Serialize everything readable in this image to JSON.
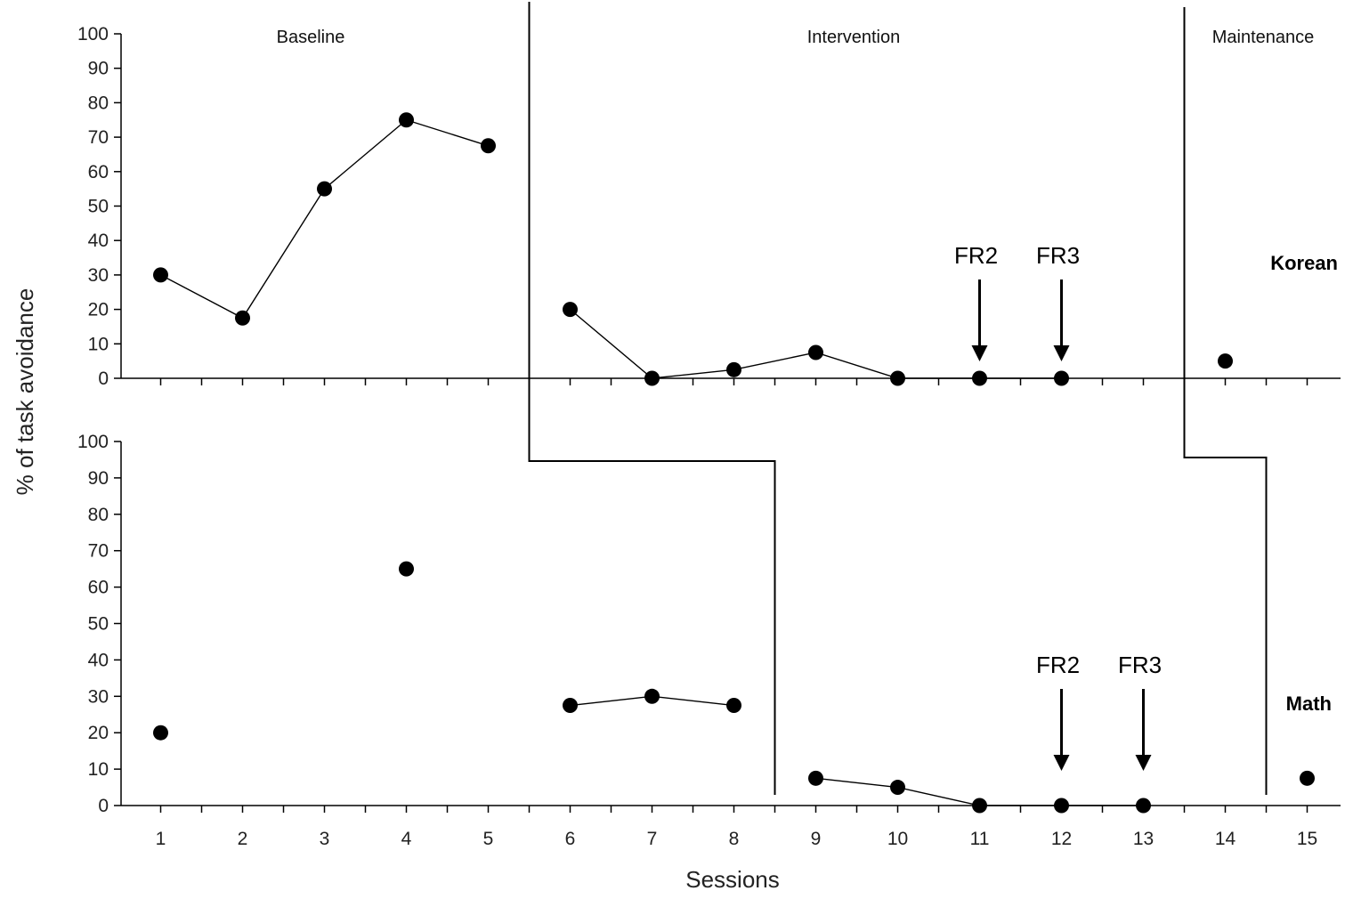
{
  "chart_data": {
    "type": "line",
    "ylabel": "% of task avoidance",
    "xlabel": "Sessions",
    "x_ticks": [
      "1",
      "2",
      "3",
      "4",
      "5",
      "6",
      "7",
      "8",
      "9",
      "10",
      "11",
      "12",
      "13",
      "14",
      "15"
    ],
    "xlim": [
      0.5,
      15.5
    ],
    "ylim": [
      0,
      100
    ],
    "y_ticks": [
      "0",
      "10",
      "20",
      "30",
      "40",
      "50",
      "60",
      "70",
      "80",
      "90",
      "100"
    ],
    "phases": [
      "Baseline",
      "Intervention",
      "Maintenance"
    ],
    "panels": [
      {
        "name": "Korean",
        "series": [
          {
            "points": [
              [
                1,
                30
              ],
              [
                2,
                17.5
              ],
              [
                3,
                55
              ],
              [
                4,
                75
              ],
              [
                5,
                67.5
              ]
            ]
          },
          {
            "points": [
              [
                6,
                20
              ],
              [
                7,
                0
              ],
              [
                8,
                2.5
              ],
              [
                9,
                7.5
              ],
              [
                10,
                0
              ],
              [
                11,
                0
              ],
              [
                12,
                0
              ]
            ]
          },
          {
            "points": [
              [
                14,
                5
              ]
            ]
          }
        ],
        "phase_change_after": [
          5,
          13
        ],
        "annotations": [
          {
            "text": "FR2",
            "x": 11
          },
          {
            "text": "FR3",
            "x": 12
          }
        ]
      },
      {
        "name": "Math",
        "series": [
          {
            "points": [
              [
                1,
                20
              ]
            ]
          },
          {
            "points": [
              [
                4,
                65
              ]
            ]
          },
          {
            "points": [
              [
                6,
                27.5
              ],
              [
                7,
                30
              ],
              [
                8,
                27.5
              ]
            ]
          },
          {
            "points": [
              [
                9,
                7.5
              ],
              [
                10,
                5
              ],
              [
                11,
                0
              ],
              [
                12,
                0
              ],
              [
                13,
                0
              ]
            ]
          },
          {
            "points": [
              [
                15,
                7.5
              ]
            ]
          }
        ],
        "phase_change_after": [
          8,
          14
        ],
        "annotations": [
          {
            "text": "FR2",
            "x": 12
          },
          {
            "text": "FR3",
            "x": 13
          }
        ]
      }
    ]
  }
}
